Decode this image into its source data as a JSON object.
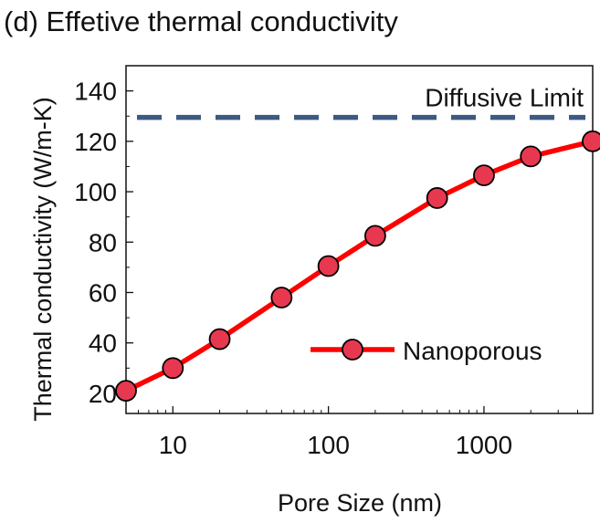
{
  "chart_data": {
    "type": "line",
    "title": "(d) Effetive thermal conductivity",
    "xlabel": "Pore Size (nm)",
    "ylabel": "Thermal conductivity (W/m-K)",
    "xscale": "log",
    "xlim": [
      5,
      5000
    ],
    "ylim": [
      12,
      150
    ],
    "xticks": [
      10,
      100,
      1000
    ],
    "xtick_labels": [
      "10",
      "100",
      "1000"
    ],
    "yticks": [
      20,
      40,
      60,
      80,
      100,
      120,
      140
    ],
    "ytick_labels": [
      "20",
      "40",
      "60",
      "80",
      "100",
      "120",
      "140"
    ],
    "grid": false,
    "legend_position": "bottom-right",
    "series": [
      {
        "name": "Nanoporous",
        "color": "#ff0000",
        "marker_color": "#e8384f",
        "style": "solid",
        "marker": "circle",
        "x": [
          5,
          10,
          20,
          50,
          100,
          200,
          500,
          1000,
          2000,
          5000
        ],
        "y": [
          21,
          30,
          41.5,
          58,
          70.5,
          82.5,
          97.5,
          106.5,
          114,
          120
        ]
      }
    ],
    "reference_lines": [
      {
        "label": "Diffusive Limit",
        "y": 129.5,
        "color": "#3d5a80",
        "style": "dashed"
      }
    ]
  }
}
